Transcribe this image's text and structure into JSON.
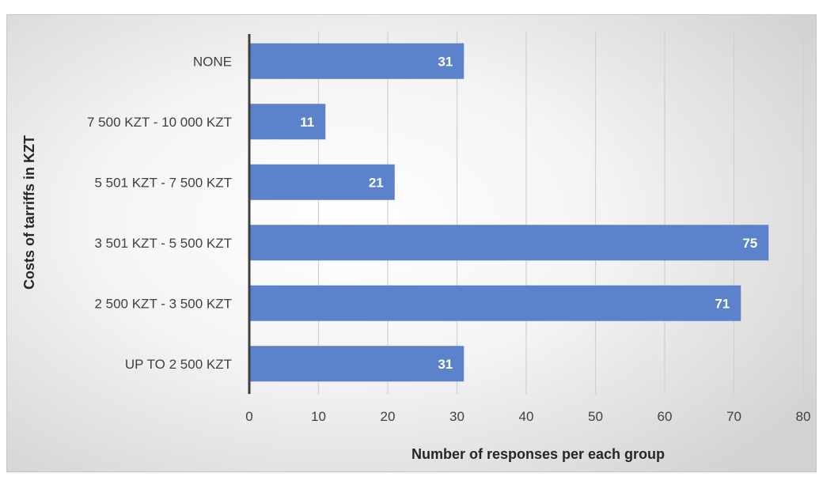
{
  "chart_data": {
    "type": "bar",
    "orientation": "horizontal",
    "categories": [
      "NONE",
      "7 500 KZT - 10 000 KZT",
      "5 501 KZT - 7 500 KZT",
      "3 501 KZT - 5 500 KZT",
      "2 500 KZT - 3 500 KZT",
      "UP TO 2 500 KZT"
    ],
    "values": [
      31,
      11,
      21,
      75,
      71,
      31
    ],
    "xlabel": "Number of responses per each group",
    "ylabel": "Costs of tarriffs in KZT",
    "xlim": [
      0,
      80
    ],
    "xticks": [
      0,
      10,
      20,
      30,
      40,
      50,
      60,
      70,
      80
    ],
    "grid": "vertical",
    "legend": "none",
    "bar_color": "#5B82CA",
    "data_labels": true
  }
}
